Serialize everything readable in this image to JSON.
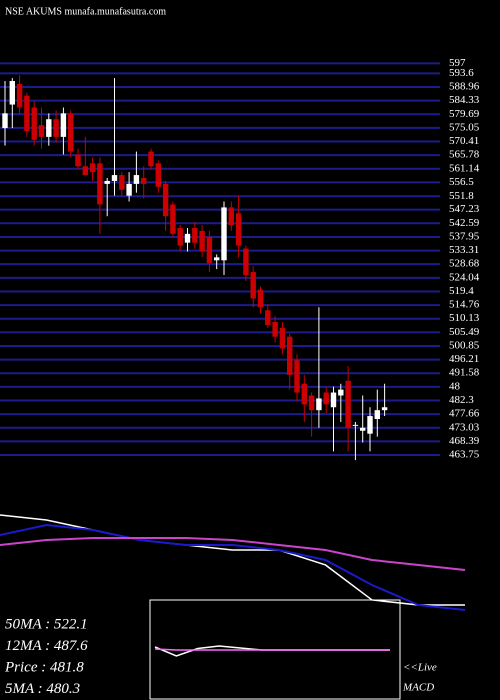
{
  "chart_data": [
    {
      "type": "candlestick",
      "title": "NSE AKUMS munafa.munafasutra.com",
      "ylim": [
        463.75,
        597
      ],
      "yticks": [
        597,
        593.6,
        588.96,
        584.33,
        579.69,
        575.05,
        570.41,
        565.78,
        561.14,
        556.5,
        551.8,
        547.23,
        542.59,
        537.95,
        533.31,
        528.68,
        524.04,
        519.4,
        514.76,
        510.13,
        505.49,
        500.85,
        496.21,
        491.58,
        {
          "value": 486.94,
          "label": "48"
        },
        482.3,
        477.66,
        473.03,
        468.39,
        463.75
      ],
      "grid": true,
      "grid_color": "#1c1c8e",
      "up_color": "#ffffff",
      "down_color": "#cc0000",
      "open": [
        575,
        583,
        590,
        586,
        582,
        576,
        572,
        578,
        572,
        580,
        566,
        562,
        563,
        563,
        556,
        557,
        559,
        552,
        556,
        558,
        567,
        563,
        556,
        549,
        541,
        536,
        541,
        540,
        538,
        530,
        530,
        548,
        546,
        534,
        526,
        520,
        513,
        509,
        507,
        504,
        496,
        488,
        484,
        479,
        485,
        480,
        484,
        489,
        474,
        472,
        471,
        476,
        479
      ],
      "high": [
        591,
        592,
        593,
        587,
        584,
        582,
        580,
        581,
        582,
        581,
        568,
        572,
        565,
        565,
        558,
        592,
        560,
        560,
        567,
        562,
        568,
        564,
        557,
        550,
        542,
        541,
        543,
        542,
        540,
        532,
        550,
        550,
        552,
        535,
        528,
        521,
        515,
        511,
        509,
        505,
        498,
        491,
        485,
        514,
        487,
        487,
        488,
        494,
        475,
        484,
        480,
        486,
        488
      ],
      "low": [
        569,
        575,
        580,
        572,
        569,
        568,
        569,
        570,
        566,
        565,
        561,
        559,
        557,
        539,
        545,
        552,
        552,
        550,
        553,
        551,
        561,
        553,
        540,
        538,
        533,
        533,
        534,
        531,
        526,
        527,
        525,
        540,
        531,
        523,
        514,
        512,
        507,
        502,
        498,
        486,
        482,
        475,
        470,
        473,
        478,
        465,
        475,
        465,
        462,
        468,
        465,
        470,
        477
      ],
      "close": [
        580,
        591,
        582,
        574,
        571,
        572,
        578,
        572,
        580,
        567,
        562,
        559,
        560,
        549,
        557,
        559,
        554,
        556,
        559,
        556,
        562,
        555,
        545,
        539,
        535,
        539,
        536,
        533,
        529,
        531,
        548,
        542,
        535,
        525,
        517,
        514,
        508,
        504,
        500,
        491,
        485,
        481,
        479,
        483,
        481,
        485,
        486,
        473,
        474,
        473,
        477,
        479,
        480
      ]
    },
    {
      "type": "line",
      "ylim": [
        470,
        600
      ],
      "series": [
        {
          "color": "#ffffff",
          "values": [
            578.3,
            572.9,
            562.1,
            551.3,
            545.8,
            540.4,
            540.4,
            524.2,
            486.3,
            480.8,
            480.8
          ]
        },
        {
          "color": "#1a1acc",
          "values": [
            556.7,
            567.5,
            562.1,
            551.3,
            545.8,
            545.8,
            540.4,
            529.6,
            502.5,
            480.8,
            475.4
          ]
        },
        {
          "color": "#cc44cc",
          "values": [
            545.8,
            551.3,
            553.4,
            553.4,
            553.4,
            551.3,
            545.8,
            540.4,
            529.6,
            524.2,
            518.8
          ]
        }
      ],
      "indicators": [
        "50MA : 522.1",
        "12MA : 487.6",
        "Price   : 481.8",
        "5MA : 480.3"
      ]
    },
    {
      "type": "macd",
      "ylim": [
        -10,
        10
      ],
      "series": [
        {
          "color": "#ffffff",
          "values": [
            0.6,
            -1.2,
            0.3,
            0.8,
            0.4,
            0,
            0,
            0,
            0,
            0,
            0,
            0
          ]
        },
        {
          "color": "#ff66ff",
          "values": [
            0.2,
            0,
            0,
            0,
            0,
            0,
            0,
            0,
            0,
            0,
            0,
            0
          ]
        }
      ],
      "annotations": [
        "<<Live",
        "MACD"
      ]
    }
  ]
}
